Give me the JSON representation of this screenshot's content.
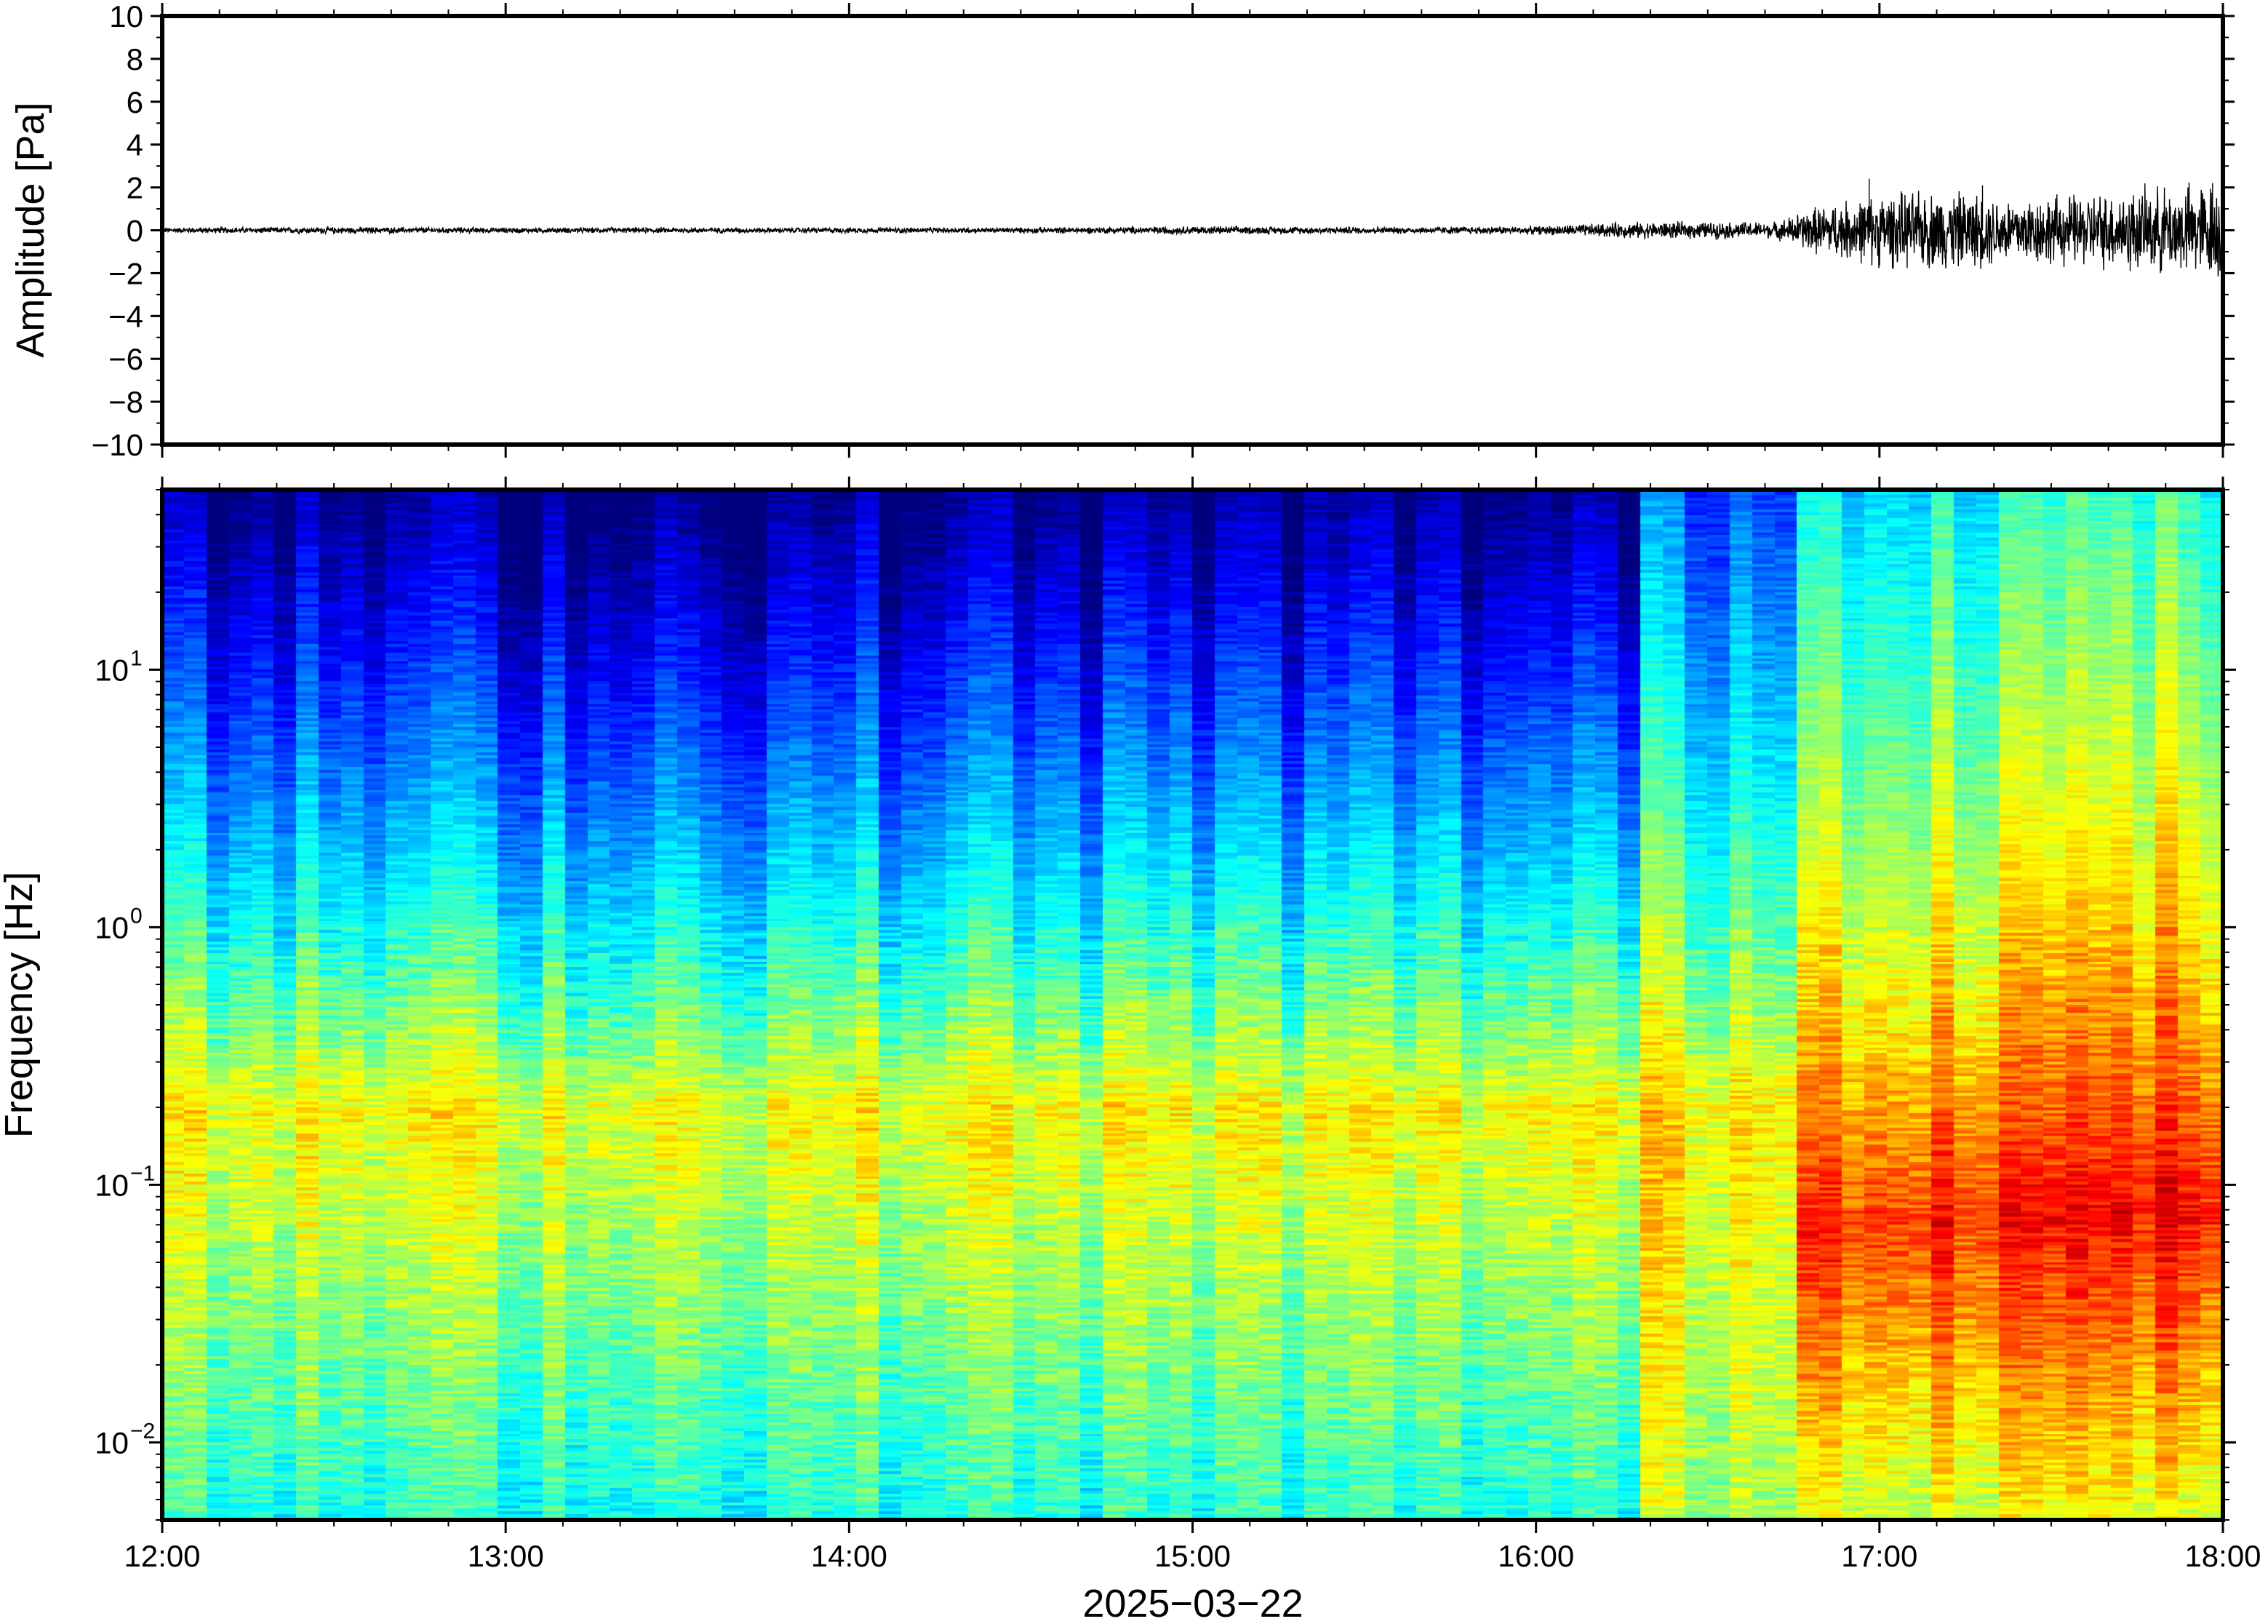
{
  "chart_data": [
    {
      "type": "line",
      "panel": "waveform",
      "ylabel": "Amplitude [Pa]",
      "ylim": [
        -10,
        10
      ],
      "yticks": [
        10,
        8,
        6,
        4,
        2,
        0,
        -2,
        -4,
        -6,
        -8,
        -10
      ],
      "ytick_labels": [
        "10",
        "8",
        "6",
        "4",
        "2",
        "0",
        "−2",
        "−4",
        "−6",
        "−8",
        "−10"
      ],
      "xlim_hours": [
        12,
        18
      ],
      "series": [
        {
          "envelope_hours": [
            12.0,
            12.5,
            13.0,
            13.5,
            14.0,
            14.5,
            15.0,
            15.5,
            16.0,
            16.3,
            16.5,
            16.7,
            16.8,
            17.0,
            17.2,
            17.4,
            17.6,
            17.8,
            18.0
          ],
          "envelope_amplitude": [
            0.1,
            0.12,
            0.1,
            0.1,
            0.1,
            0.1,
            0.15,
            0.12,
            0.15,
            0.3,
            0.3,
            0.3,
            0.8,
            1.3,
            1.4,
            1.2,
            1.3,
            1.5,
            1.8
          ],
          "peak_hours": [
            16.97,
            17.3,
            17.73,
            17.97
          ],
          "peak_amplitude": [
            2.4,
            2.1,
            -1.9,
            2.2
          ]
        }
      ]
    },
    {
      "type": "heatmap",
      "panel": "spectrogram",
      "ylabel": "Frequency [Hz]",
      "yscale": "log",
      "ylim": [
        0.005,
        50
      ],
      "yticks": [
        10,
        1,
        0.1,
        0.01
      ],
      "ytick_labels": [
        {
          "base": "10",
          "exp": "1"
        },
        {
          "base": "10",
          "exp": "0"
        },
        {
          "base": "10",
          "exp": "−1"
        },
        {
          "base": "10",
          "exp": "−2"
        }
      ],
      "xlim_hours": [
        12,
        18
      ],
      "xticks": [
        "12:00",
        "13:00",
        "14:00",
        "15:00",
        "16:00",
        "17:00",
        "18:00"
      ],
      "xlabel": "2025−03−22",
      "colormap": "jet",
      "colorscale_note": "",
      "time_breaks_hours": [
        16.3,
        16.75
      ],
      "energy_before": {
        "low_freq": 0.4,
        "peak_freq_hz": 0.2,
        "peak": 0.62,
        "high_freq": 0.0
      },
      "energy_mid": {
        "low_freq": 0.55,
        "peak_freq_hz": 0.2,
        "peak": 0.66,
        "high_freq": 0.22
      },
      "energy_after": {
        "low_freq": 0.6,
        "peak_freq_hz": 0.07,
        "peak": 0.85,
        "high_freq": 0.38
      }
    }
  ],
  "colors": {
    "frame": "#000000",
    "trace": "#000000",
    "background": "#ffffff"
  }
}
